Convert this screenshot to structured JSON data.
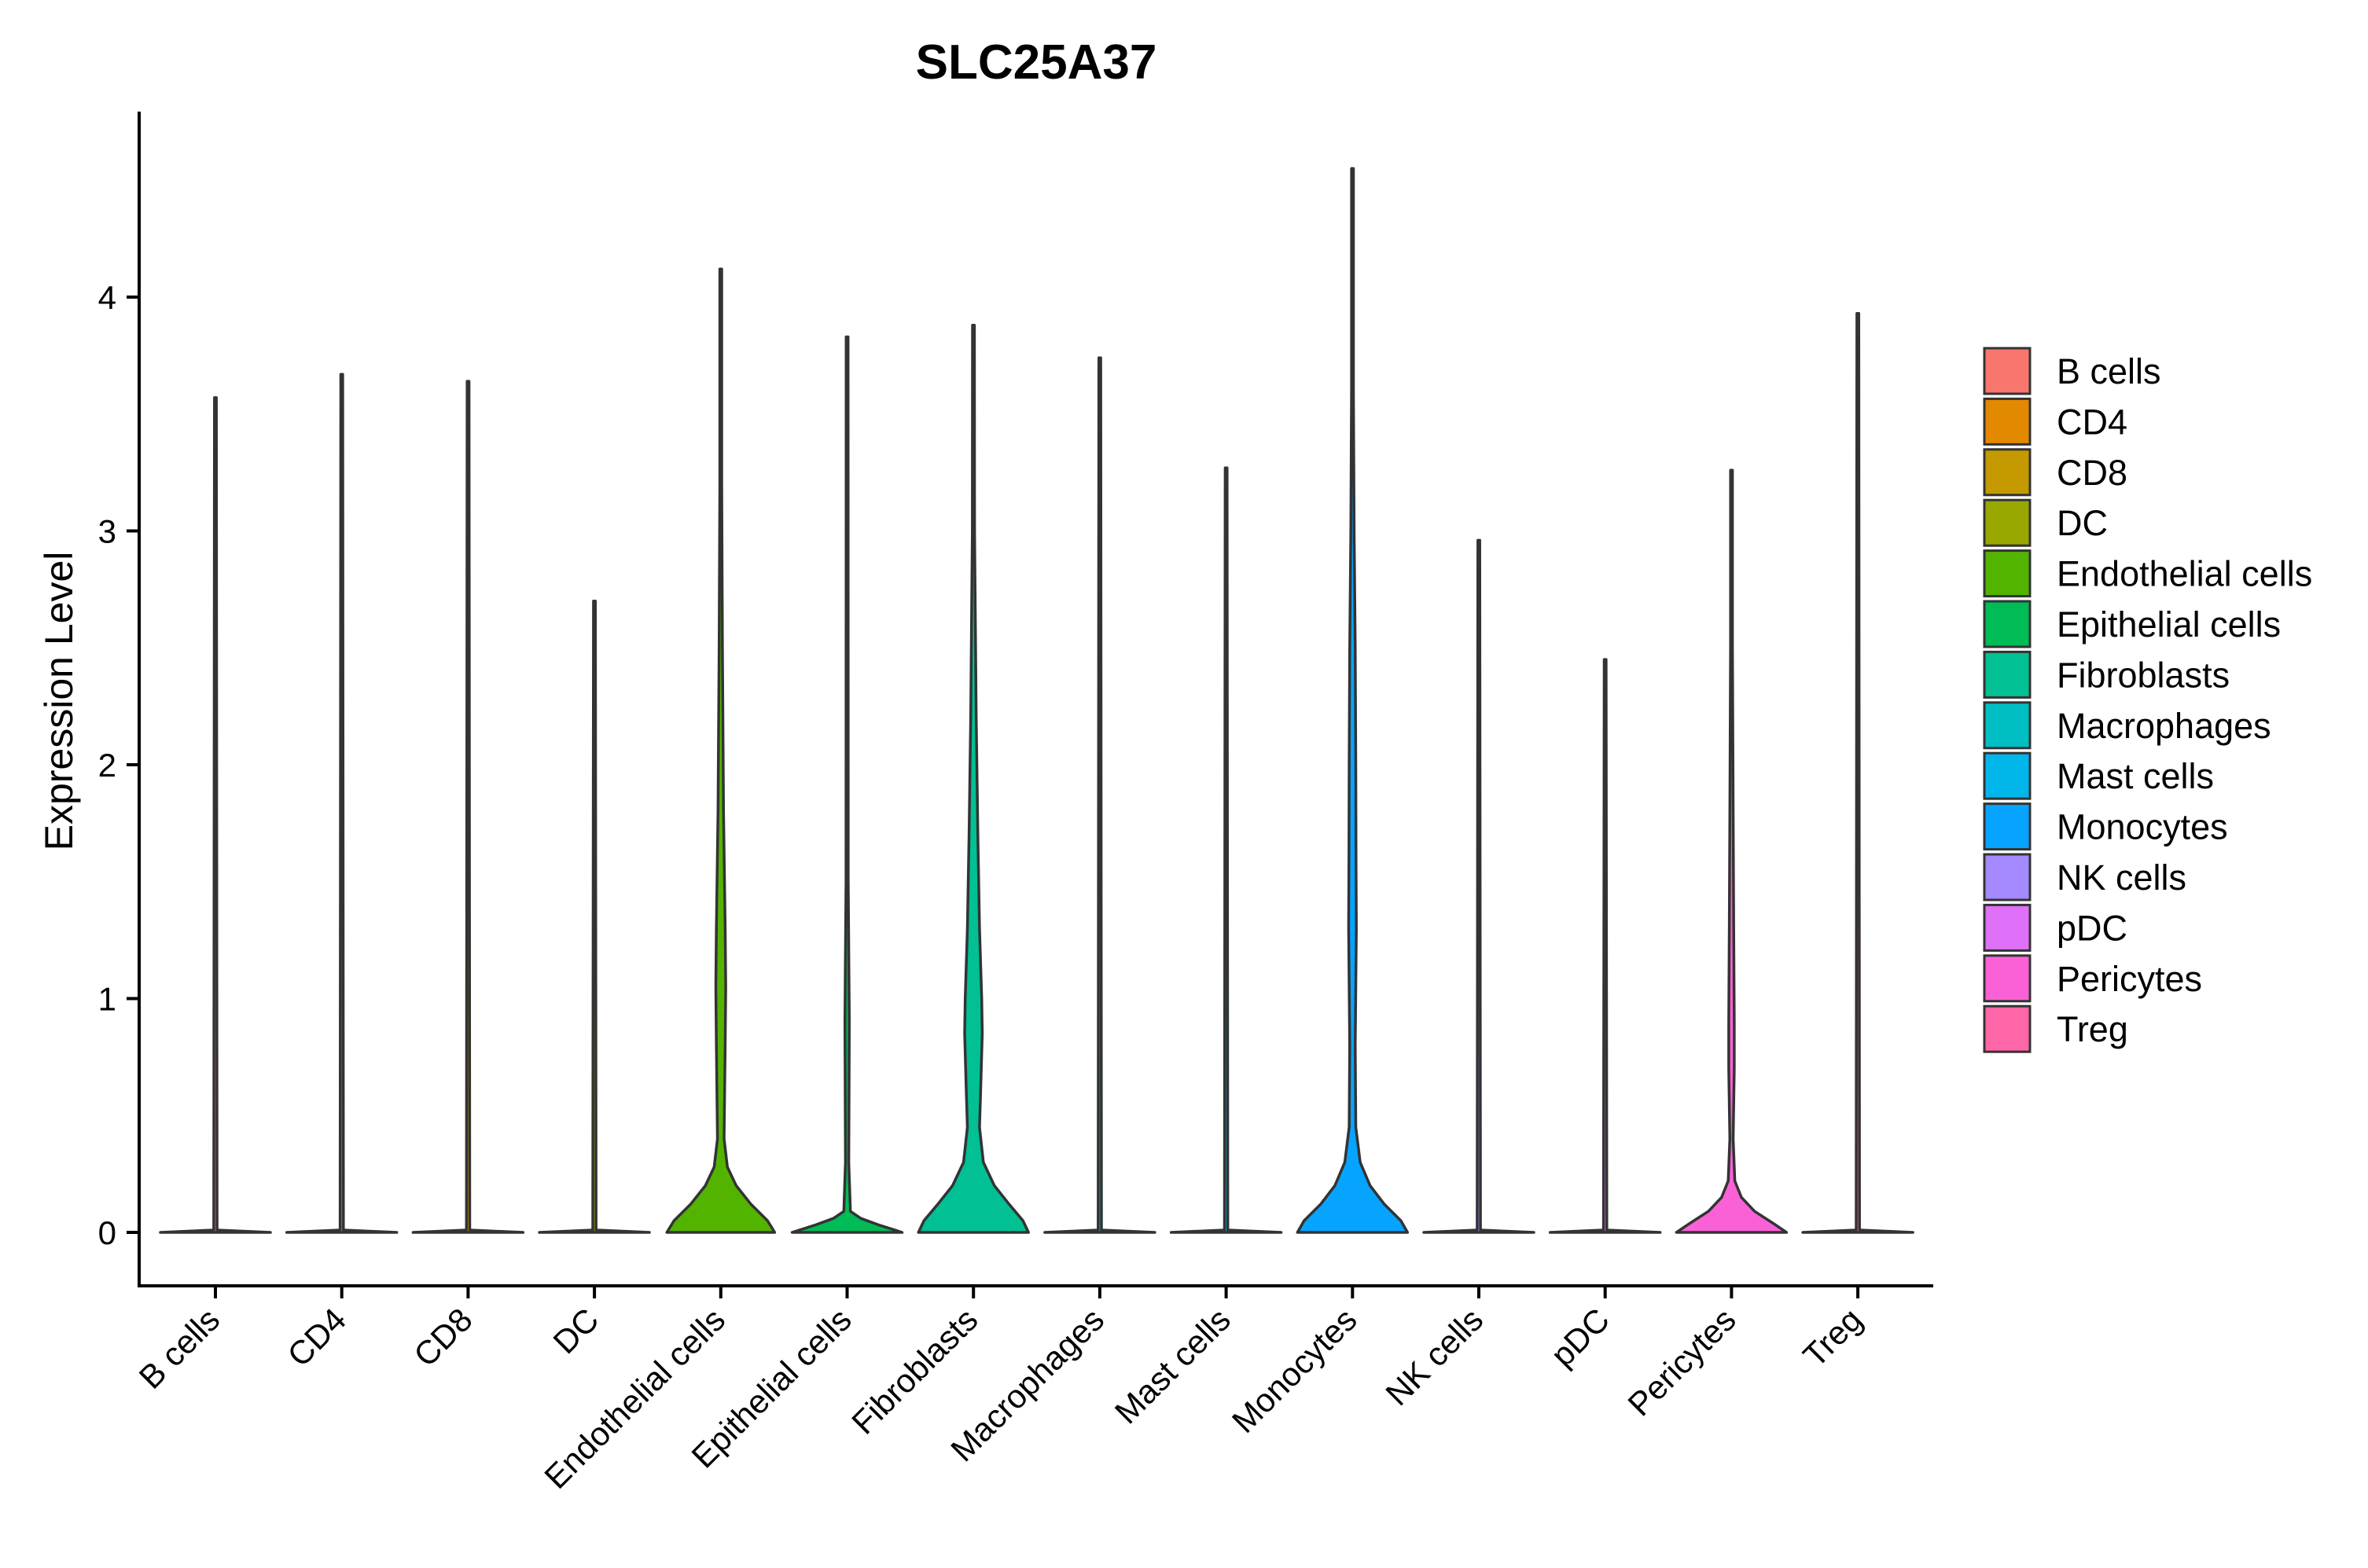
{
  "chart_data": {
    "type": "violin",
    "title": "SLC25A37",
    "xlabel": "",
    "ylabel": "Expression Level",
    "ylim": [
      -0.22,
      4.7
    ],
    "yticks": [
      0,
      1,
      2,
      3,
      4
    ],
    "grid": false,
    "legend_position": "right",
    "categories": [
      "B cells",
      "CD4",
      "CD8",
      "DC",
      "Endothelial cells",
      "Epithelial cells",
      "Fibroblasts",
      "Macrophages",
      "Mast cells",
      "Monocytes",
      "NK cells",
      "pDC",
      "Pericytes",
      "Treg"
    ],
    "colors": [
      "#F8766D",
      "#E38900",
      "#C49A00",
      "#99A800",
      "#53B400",
      "#00BC56",
      "#00C094",
      "#00BFC4",
      "#00B6EB",
      "#06A4FF",
      "#A58AFF",
      "#DF70F8",
      "#FB61D7",
      "#FF66A8"
    ],
    "max_values": [
      3.57,
      3.67,
      3.64,
      2.7,
      4.12,
      3.83,
      3.88,
      3.74,
      3.27,
      4.55,
      2.96,
      2.45,
      3.26,
      3.93
    ],
    "density_profiles": [
      [
        [
          0,
          1.0
        ],
        [
          0.01,
          0.03
        ],
        [
          3.57,
          0
        ]
      ],
      [
        [
          0,
          1.0
        ],
        [
          0.01,
          0.03
        ],
        [
          3.67,
          0
        ]
      ],
      [
        [
          0,
          1.0
        ],
        [
          0.01,
          0.03
        ],
        [
          3.64,
          0
        ]
      ],
      [
        [
          0,
          1.0
        ],
        [
          0.01,
          0.03
        ],
        [
          2.7,
          0
        ]
      ],
      [
        [
          0,
          0.98
        ],
        [
          0.05,
          0.85
        ],
        [
          0.12,
          0.55
        ],
        [
          0.2,
          0.28
        ],
        [
          0.28,
          0.12
        ],
        [
          0.4,
          0.06
        ],
        [
          0.8,
          0.08
        ],
        [
          1.05,
          0.09
        ],
        [
          1.3,
          0.08
        ],
        [
          1.8,
          0.05
        ],
        [
          2.5,
          0.03
        ],
        [
          3.2,
          0.015
        ],
        [
          4.12,
          0
        ]
      ],
      [
        [
          0,
          1.0
        ],
        [
          0.03,
          0.6
        ],
        [
          0.06,
          0.25
        ],
        [
          0.09,
          0.06
        ],
        [
          0.3,
          0.03
        ],
        [
          0.9,
          0.04
        ],
        [
          1.5,
          0.02
        ],
        [
          3.83,
          0
        ]
      ],
      [
        [
          0,
          1.0
        ],
        [
          0.05,
          0.9
        ],
        [
          0.12,
          0.65
        ],
        [
          0.2,
          0.38
        ],
        [
          0.3,
          0.18
        ],
        [
          0.45,
          0.11
        ],
        [
          0.6,
          0.13
        ],
        [
          0.85,
          0.16
        ],
        [
          1.0,
          0.15
        ],
        [
          1.3,
          0.11
        ],
        [
          1.7,
          0.08
        ],
        [
          2.2,
          0.05
        ],
        [
          3.0,
          0.02
        ],
        [
          3.88,
          0
        ]
      ],
      [
        [
          0,
          1.0
        ],
        [
          0.01,
          0.03
        ],
        [
          3.74,
          0
        ]
      ],
      [
        [
          0,
          1.0
        ],
        [
          0.01,
          0.03
        ],
        [
          3.27,
          0
        ]
      ],
      [
        [
          0,
          1.0
        ],
        [
          0.05,
          0.88
        ],
        [
          0.12,
          0.58
        ],
        [
          0.2,
          0.32
        ],
        [
          0.3,
          0.14
        ],
        [
          0.45,
          0.06
        ],
        [
          0.8,
          0.05
        ],
        [
          1.3,
          0.07
        ],
        [
          1.6,
          0.065
        ],
        [
          2.0,
          0.06
        ],
        [
          2.5,
          0.05
        ],
        [
          3.0,
          0.03
        ],
        [
          3.6,
          0.01
        ],
        [
          4.55,
          0
        ]
      ],
      [
        [
          0,
          1.0
        ],
        [
          0.01,
          0.03
        ],
        [
          2.96,
          0
        ]
      ],
      [
        [
          0,
          1.0
        ],
        [
          0.01,
          0.03
        ],
        [
          2.45,
          0
        ]
      ],
      [
        [
          0,
          1.0
        ],
        [
          0.04,
          0.75
        ],
        [
          0.09,
          0.42
        ],
        [
          0.15,
          0.18
        ],
        [
          0.22,
          0.06
        ],
        [
          0.4,
          0.03
        ],
        [
          0.7,
          0.05
        ],
        [
          0.9,
          0.05
        ],
        [
          1.3,
          0.04
        ],
        [
          1.8,
          0.03
        ],
        [
          2.5,
          0.01
        ],
        [
          3.26,
          0
        ]
      ],
      [
        [
          0,
          1.0
        ],
        [
          0.01,
          0.03
        ],
        [
          3.93,
          0
        ]
      ]
    ]
  }
}
